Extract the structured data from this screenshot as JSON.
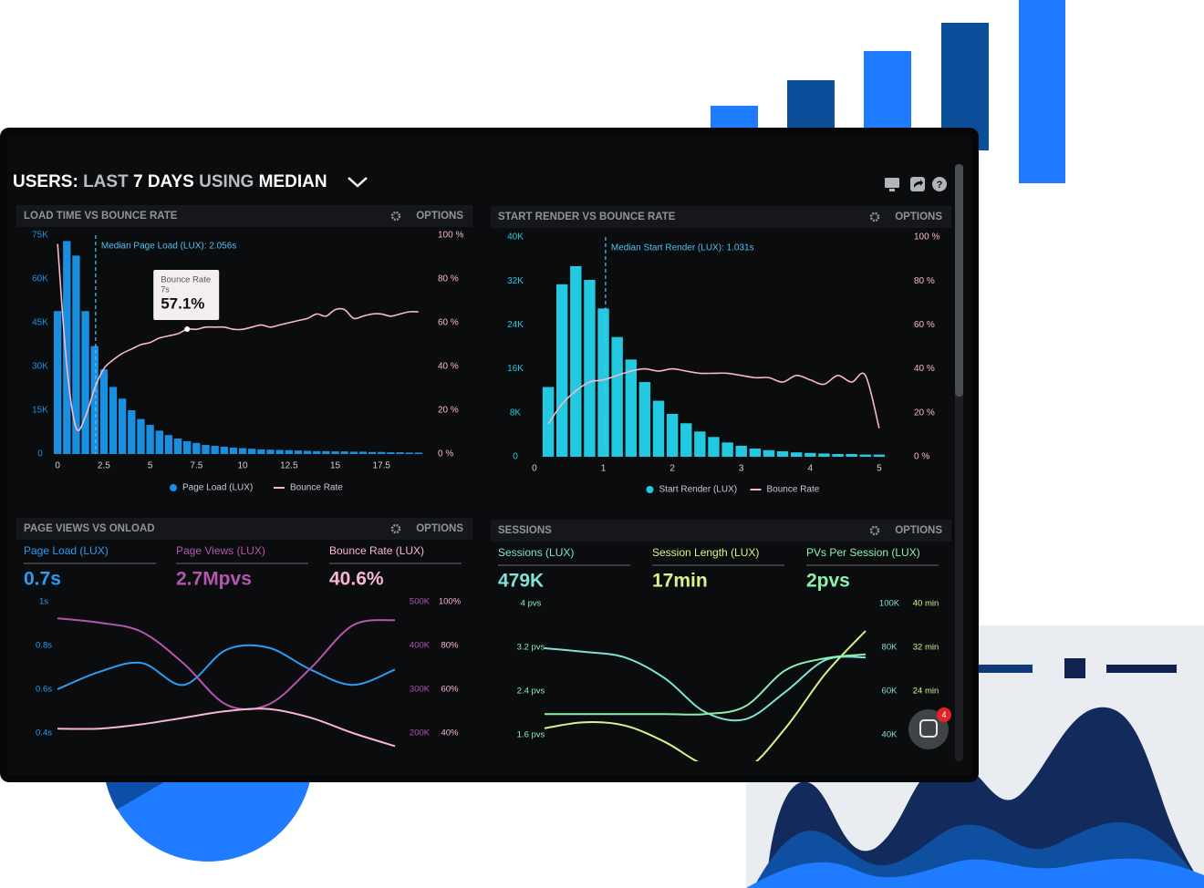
{
  "header": {
    "title": [
      "USERS:",
      "LAST",
      "7 DAYS",
      "USING",
      "MEDIAN"
    ]
  },
  "chat": {
    "badge": 4
  },
  "chart_data": [
    {
      "type": "bar",
      "title": "LOAD TIME VS BOUNCE RATE",
      "options": "OPTIONS",
      "annotation": "Median Page Load (LUX): 2.056s",
      "median_x": 2.056,
      "tooltip": {
        "name": "Bounce Rate",
        "x": 7,
        "x_label": "7s",
        "value": 57.1,
        "value_label": "57.1%"
      },
      "x": [
        0,
        0.5,
        1,
        1.5,
        2,
        2.5,
        3,
        3.5,
        4,
        4.5,
        5,
        5.5,
        6,
        6.5,
        7,
        7.5,
        8,
        8.5,
        9,
        9.5,
        10,
        10.5,
        11,
        11.5,
        12,
        12.5,
        13,
        13.5,
        14,
        14.5,
        15,
        15.5,
        16,
        16.5,
        17,
        17.5,
        18,
        18.5,
        19,
        19.5
      ],
      "xlim": [
        -0.5,
        20
      ],
      "xticks": [
        0,
        2.5,
        5,
        7.5,
        10,
        12.5,
        15,
        17.5
      ],
      "ylim": [
        0,
        75000
      ],
      "yticks": [
        0,
        {
          "value": 15000,
          "label": "15K"
        },
        {
          "value": 30000,
          "label": "30K"
        },
        {
          "value": 45000,
          "label": "45K"
        },
        {
          "value": 60000,
          "label": "60K"
        },
        {
          "value": 75000,
          "label": "75K"
        }
      ],
      "y2lim": [
        0,
        100
      ],
      "y2ticks": [
        {
          "value": 0,
          "label": "0 %"
        },
        {
          "value": 20,
          "label": "20 %"
        },
        {
          "value": 40,
          "label": "40 %"
        },
        {
          "value": 60,
          "label": "60 %"
        },
        {
          "value": 80,
          "label": "80 %"
        },
        {
          "value": 100,
          "label": "100 %"
        }
      ],
      "series": [
        {
          "name": "Page Load (LUX)",
          "color": "#1a8fe0",
          "values": [
            49000,
            73000,
            68000,
            49000,
            37000,
            29000,
            23000,
            19000,
            15000,
            12000,
            10000,
            8000,
            6500,
            5300,
            4400,
            3800,
            3100,
            2800,
            2500,
            2200,
            2000,
            1800,
            1600,
            1500,
            1400,
            1300,
            1200,
            1100,
            1000,
            1000,
            900,
            900,
            800,
            800,
            700,
            700,
            600,
            600,
            500,
            500
          ]
        },
        {
          "name": "Bounce Rate",
          "color": "#f5b8cf",
          "type": "line",
          "axis": "y2",
          "values": [
            96,
            40,
            12,
            17,
            30,
            39,
            43,
            46,
            48,
            50,
            51,
            53,
            54,
            55,
            57,
            57,
            58,
            58,
            58,
            57,
            57,
            58,
            59,
            58,
            59,
            60,
            61,
            62,
            64,
            63,
            66,
            66,
            62,
            63,
            64,
            64,
            63,
            64,
            65,
            65
          ]
        }
      ]
    },
    {
      "type": "bar",
      "title": "START RENDER VS BOUNCE RATE",
      "options": "OPTIONS",
      "annotation": "Median Start Render (LUX): 1.031s",
      "median_x": 1.031,
      "x": [
        0.2,
        0.4,
        0.6,
        0.8,
        1,
        1.2,
        1.4,
        1.6,
        1.8,
        2,
        2.2,
        2.4,
        2.6,
        2.8,
        3,
        3.2,
        3.4,
        3.6,
        3.8,
        4,
        4.2,
        4.4,
        4.6,
        4.8,
        5
      ],
      "xlim": [
        -0.1,
        5.2
      ],
      "xticks": [
        0,
        1,
        2,
        3,
        4,
        5
      ],
      "ylim": [
        0,
        40000
      ],
      "yticks": [
        0,
        {
          "value": 8000,
          "label": "8K"
        },
        {
          "value": 16000,
          "label": "16K"
        },
        {
          "value": 24000,
          "label": "24K"
        },
        {
          "value": 32000,
          "label": "32K"
        },
        {
          "value": 40000,
          "label": "40K"
        }
      ],
      "y2lim": [
        0,
        100
      ],
      "y2ticks": [
        {
          "value": 0,
          "label": "0 %"
        },
        {
          "value": 20,
          "label": "20 %"
        },
        {
          "value": 40,
          "label": "40 %"
        },
        {
          "value": 60,
          "label": "60 %"
        },
        {
          "value": 80,
          "label": "80 %"
        },
        {
          "value": 100,
          "label": "100 %"
        }
      ],
      "series": [
        {
          "name": "Start Render (LUX)",
          "color": "#22c9e0",
          "values": [
            12700,
            31400,
            34700,
            32200,
            27000,
            21800,
            17700,
            13600,
            10200,
            7800,
            6100,
            4600,
            3600,
            2600,
            2000,
            1500,
            1200,
            1000,
            800,
            700,
            600,
            500,
            500,
            400,
            400
          ]
        },
        {
          "name": "Bounce Rate",
          "color": "#f5b8cf",
          "type": "line",
          "axis": "y2",
          "values": [
            15,
            24,
            30,
            34,
            35,
            37,
            39,
            40,
            39,
            40,
            39,
            38,
            38,
            38,
            37,
            36,
            36,
            34,
            37,
            35,
            33,
            37,
            34,
            37,
            13
          ]
        }
      ]
    },
    {
      "type": "line",
      "title": "PAGE VIEWS VS ONLOAD",
      "options": "OPTIONS",
      "categories": [
        null,
        null,
        null,
        null,
        null,
        null,
        null,
        null,
        null
      ],
      "ylim": [
        0.3,
        1
      ],
      "yticks": [
        {
          "value": 0.4,
          "label": "0.4s"
        },
        {
          "value": 0.6,
          "label": "0.6s"
        },
        {
          "value": 0.8,
          "label": "0.8s"
        },
        {
          "value": 1,
          "label": "1s"
        }
      ],
      "y2lim": [
        150000,
        500000
      ],
      "y2ticks": [
        {
          "value": 200000,
          "label": "200K"
        },
        {
          "value": 300000,
          "label": "300K"
        },
        {
          "value": 400000,
          "label": "400K"
        },
        {
          "value": 500000,
          "label": "500K"
        }
      ],
      "y3lim": [
        30,
        100
      ],
      "y3ticks": [
        {
          "value": 40,
          "label": "40%"
        },
        {
          "value": 60,
          "label": "60%"
        },
        {
          "value": 80,
          "label": "80%"
        },
        {
          "value": 100,
          "label": "100%"
        }
      ],
      "series": [
        {
          "name": "Page Load (LUX)",
          "summary": "0.7s",
          "color": "#2a9df4",
          "values": [
            0.6,
            0.68,
            0.72,
            0.62,
            0.78,
            0.79,
            0.69,
            0.62,
            0.69
          ]
        },
        {
          "name": "Page Views (LUX)",
          "summary": "2.7Mpvs",
          "color": "#b455b0",
          "axis": "y2",
          "values": [
            462000,
            452000,
            431000,
            358000,
            265000,
            265000,
            348000,
            446000,
            458000
          ]
        },
        {
          "name": "Bounce Rate (LUX)",
          "summary": "40.6%",
          "color": "#f7b6d2",
          "axis": "y3",
          "values": [
            42,
            42,
            44,
            47,
            50,
            51,
            47,
            40,
            34
          ]
        }
      ]
    },
    {
      "type": "line",
      "title": "SESSIONS",
      "options": "OPTIONS",
      "categories": [
        null,
        null,
        null,
        null,
        null,
        null,
        null,
        null,
        null
      ],
      "ylim": [
        1.2,
        4
      ],
      "yticks": [
        {
          "value": 1.6,
          "label": "1.6 pvs"
        },
        {
          "value": 2.4,
          "label": "2.4 pvs"
        },
        {
          "value": 3.2,
          "label": "3.2 pvs"
        },
        {
          "value": 4,
          "label": "4 pvs"
        }
      ],
      "y2lim": [
        30000,
        100000
      ],
      "y2ticks": [
        {
          "value": 40000,
          "label": "40K"
        },
        {
          "value": 60000,
          "label": "60K"
        },
        {
          "value": 80000,
          "label": "80K"
        },
        {
          "value": 100000,
          "label": "100K"
        }
      ],
      "y3lim": [
        12,
        40
      ],
      "y3ticks": [
        {
          "value": 24,
          "label": "24 min"
        },
        {
          "value": 32,
          "label": "32 min"
        },
        {
          "value": 40,
          "label": "40 min"
        }
      ],
      "series": [
        {
          "name": "Sessions (LUX)",
          "summary": "479K",
          "color": "#7de3d6",
          "axis": "y2",
          "values": [
            79600,
            77900,
            75400,
            65800,
            50400,
            47100,
            59600,
            74200,
            75400
          ]
        },
        {
          "name": "Session Length (LUX)",
          "summary": "17min",
          "color": "#d9f28b",
          "axis": "y3",
          "values": [
            17.2,
            18.3,
            17.7,
            14.7,
            10.5,
            9.7,
            17.2,
            27.2,
            35
          ]
        },
        {
          "name": "PVs Per Session (LUX)",
          "summary": "2pvs",
          "color": "#8af0ae",
          "values": [
            1.98,
            1.98,
            1.98,
            1.98,
            1.98,
            2.12,
            2.78,
            3.0,
            3.07
          ]
        }
      ]
    }
  ]
}
